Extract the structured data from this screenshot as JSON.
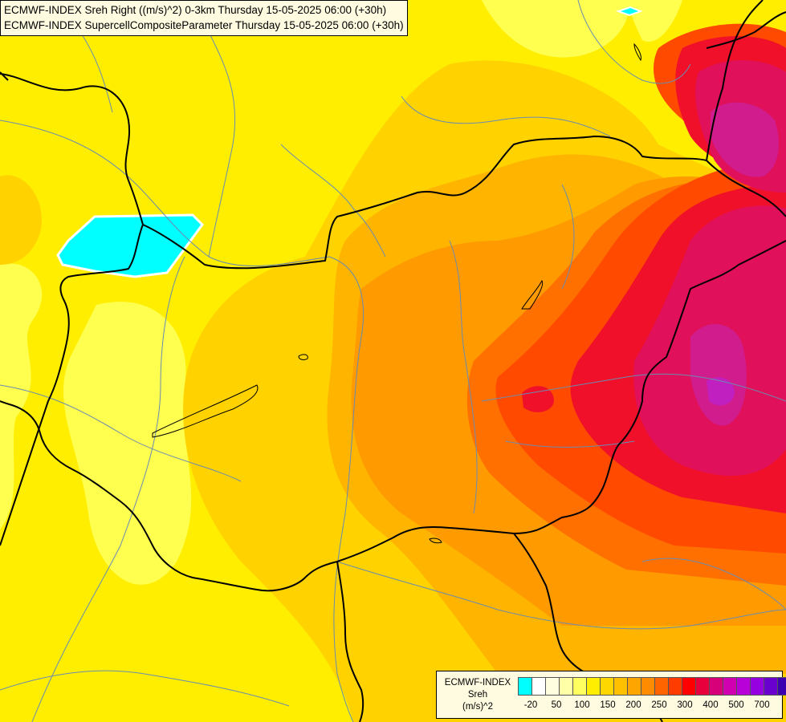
{
  "header": {
    "line1": "ECMWF-INDEX Sreh Right ((m/s)^2) 0-3km Thursday 15-05-2025 06:00 (+30h)",
    "line2": "ECMWF-INDEX SupercellCompositeParameter Thursday 15-05-2025 06:00 (+30h)"
  },
  "legend": {
    "model": "ECMWF-INDEX",
    "param": "Sreh",
    "unit": "(m/s)^2",
    "colors": [
      "#00ffff",
      "#ffffff",
      "#ffffe0",
      "#ffffa8",
      "#ffff60",
      "#ffee00",
      "#ffd700",
      "#ffc000",
      "#ffa500",
      "#ff8c00",
      "#ff6400",
      "#ff3c00",
      "#ff0000",
      "#e8003c",
      "#d70078",
      "#d000b0",
      "#b800d8",
      "#9600e0",
      "#6a00d0",
      "#3c00b0",
      "#000080"
    ],
    "ticks": [
      "-20",
      "50",
      "100",
      "150",
      "200",
      "250",
      "300",
      "400",
      "500",
      "700"
    ]
  },
  "map": {
    "background": "#ffee00",
    "field_colors": {
      "light_yellow": "#ffff50",
      "yellow": "#ffee00",
      "gold": "#ffd200",
      "orange_light": "#ffb400",
      "orange": "#ff9a00",
      "orange_dark": "#ff7000",
      "red_orange": "#ff4a00",
      "red": "#f0102a",
      "crimson": "#e0105a",
      "magenta": "#d01c8c",
      "violet": "#c020c0",
      "cyan": "#00ffff"
    },
    "border_color": "#000000",
    "river_color": "#6a8cb0"
  }
}
